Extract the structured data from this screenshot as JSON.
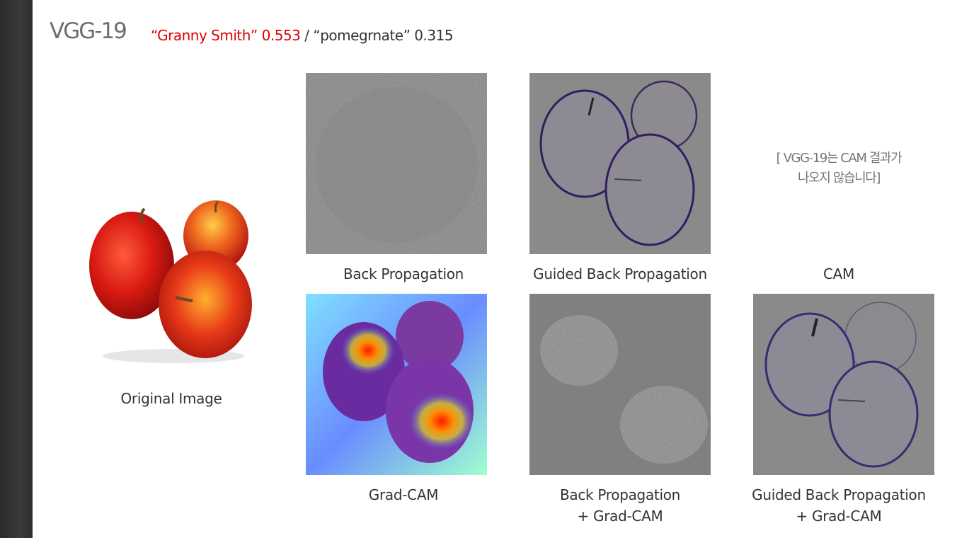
{
  "model_title": "VGG-19",
  "prediction": {
    "top": "“Granny Smith” 0.553",
    "rest": " / “pomegrnate” 0.315"
  },
  "captions": {
    "original": "Original Image",
    "back_prop": "Back Propagation",
    "guided_back_prop": "Guided Back Propagation",
    "cam": "CAM",
    "grad_cam": "Grad-CAM",
    "back_prop_grad_cam_line1": "Back Propagation",
    "back_prop_grad_cam_line2": "+ Grad-CAM",
    "guided_grad_cam_line1": "Guided Back Propagation",
    "guided_grad_cam_line2": "+ Grad-CAM"
  },
  "cam_note": {
    "line1": "[ VGG-19는 CAM 결과가",
    "line2": "나오지 않습니다]"
  },
  "colors": {
    "prediction_highlight": "#e00000",
    "sidebar": "#2e2e2e",
    "saliency_background": "#808080"
  }
}
